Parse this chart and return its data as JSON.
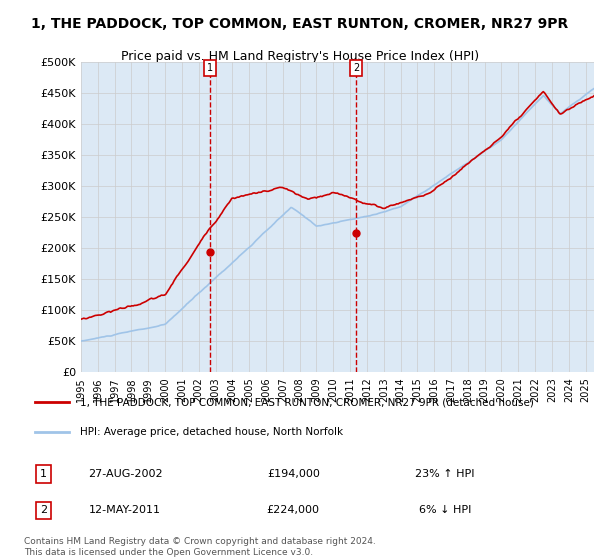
{
  "title": "1, THE PADDOCK, TOP COMMON, EAST RUNTON, CROMER, NR27 9PR",
  "subtitle": "Price paid vs. HM Land Registry's House Price Index (HPI)",
  "ylabel_ticks": [
    "£0",
    "£50K",
    "£100K",
    "£150K",
    "£200K",
    "£250K",
    "£300K",
    "£350K",
    "£400K",
    "£450K",
    "£500K"
  ],
  "ytick_vals": [
    0,
    50000,
    100000,
    150000,
    200000,
    250000,
    300000,
    350000,
    400000,
    450000,
    500000
  ],
  "ylim": [
    0,
    500000
  ],
  "xlim_start": 1995.0,
  "xlim_end": 2025.5,
  "purchase1_x": 2002.65,
  "purchase1_y": 194000,
  "purchase1_label": "1",
  "purchase1_date": "27-AUG-2002",
  "purchase1_price": "£194,000",
  "purchase1_hpi": "23% ↑ HPI",
  "purchase2_x": 2011.36,
  "purchase2_y": 224000,
  "purchase2_label": "2",
  "purchase2_date": "12-MAY-2011",
  "purchase2_price": "£224,000",
  "purchase2_hpi": "6% ↓ HPI",
  "hpi_color": "#a0c4e8",
  "price_color": "#cc0000",
  "marker_color": "#cc0000",
  "vline_color": "#cc0000",
  "bg_color": "#dce9f5",
  "plot_bg": "#ffffff",
  "grid_color": "#cccccc",
  "legend_border_color": "#888888",
  "table_border_color": "#cc0000",
  "legend_line1": "1, THE PADDOCK, TOP COMMON, EAST RUNTON, CROMER, NR27 9PR (detached house)",
  "legend_line2": "HPI: Average price, detached house, North Norfolk",
  "footer": "Contains HM Land Registry data © Crown copyright and database right 2024.\nThis data is licensed under the Open Government Licence v3.0.",
  "xtick_years": [
    1995,
    1996,
    1997,
    1998,
    1999,
    2000,
    2001,
    2002,
    2003,
    2004,
    2005,
    2006,
    2007,
    2008,
    2009,
    2010,
    2011,
    2012,
    2013,
    2014,
    2015,
    2016,
    2017,
    2018,
    2019,
    2020,
    2021,
    2022,
    2023,
    2024,
    2025
  ]
}
